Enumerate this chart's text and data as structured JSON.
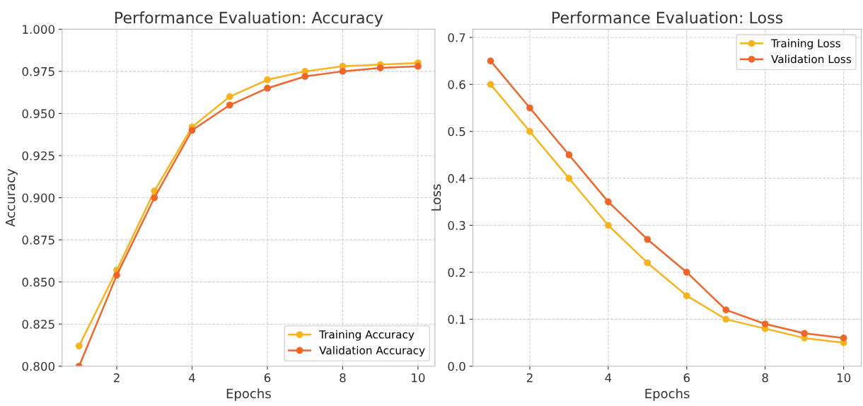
{
  "chart_data": [
    {
      "type": "line",
      "title": "Performance Evaluation: Accuracy",
      "xlabel": "Epochs",
      "ylabel": "Accuracy",
      "x": [
        1,
        2,
        3,
        4,
        5,
        6,
        7,
        8,
        9,
        10
      ],
      "series": [
        {
          "name": "Training Accuracy",
          "color": "#f8b31c",
          "values": [
            0.812,
            0.857,
            0.904,
            0.942,
            0.96,
            0.97,
            0.975,
            0.978,
            0.979,
            0.98
          ]
        },
        {
          "name": "Validation Accuracy",
          "color": "#f0662a",
          "values": [
            0.8,
            0.854,
            0.9,
            0.94,
            0.955,
            0.965,
            0.972,
            0.975,
            0.977,
            0.978
          ]
        }
      ],
      "xlim": [
        0.55,
        10.45
      ],
      "ylim": [
        0.8,
        1.0
      ],
      "xticks": [
        2,
        4,
        6,
        8,
        10
      ],
      "yticks": [
        {
          "value": 0.8,
          "label": "0.800"
        },
        {
          "value": 0.825,
          "label": "0.825"
        },
        {
          "value": 0.85,
          "label": "0.850"
        },
        {
          "value": 0.875,
          "label": "0.875"
        },
        {
          "value": 0.9,
          "label": "0.900"
        },
        {
          "value": 0.925,
          "label": "0.925"
        },
        {
          "value": 0.95,
          "label": "0.950"
        },
        {
          "value": 0.975,
          "label": "0.975"
        },
        {
          "value": 1.0,
          "label": "1.000"
        }
      ],
      "grid": true,
      "legend": "bottom right",
      "marker": "circle",
      "line_style": "solid"
    },
    {
      "type": "line",
      "title": "Performance Evaluation: Loss",
      "xlabel": "Epochs",
      "ylabel": "Loss",
      "x": [
        1,
        2,
        3,
        4,
        5,
        6,
        7,
        8,
        9,
        10
      ],
      "series": [
        {
          "name": "Training Loss",
          "color": "#f8b31c",
          "values": [
            0.6,
            0.5,
            0.4,
            0.3,
            0.22,
            0.15,
            0.1,
            0.08,
            0.06,
            0.05
          ]
        },
        {
          "name": "Validation Loss",
          "color": "#f0662a",
          "values": [
            0.65,
            0.55,
            0.45,
            0.35,
            0.27,
            0.2,
            0.12,
            0.09,
            0.07,
            0.06
          ]
        }
      ],
      "xlim": [
        0.55,
        10.45
      ],
      "ylim": [
        0.0,
        0.7175
      ],
      "xticks": [
        2,
        4,
        6,
        8,
        10
      ],
      "yticks": [
        {
          "value": 0.0,
          "label": "0.0"
        },
        {
          "value": 0.1,
          "label": "0.1"
        },
        {
          "value": 0.2,
          "label": "0.2"
        },
        {
          "value": 0.3,
          "label": "0.3"
        },
        {
          "value": 0.4,
          "label": "0.4"
        },
        {
          "value": 0.5,
          "label": "0.5"
        },
        {
          "value": 0.6,
          "label": "0.6"
        },
        {
          "value": 0.7,
          "label": "0.7"
        }
      ],
      "grid": true,
      "legend": "top right",
      "marker": "circle",
      "line_style": "solid"
    }
  ]
}
